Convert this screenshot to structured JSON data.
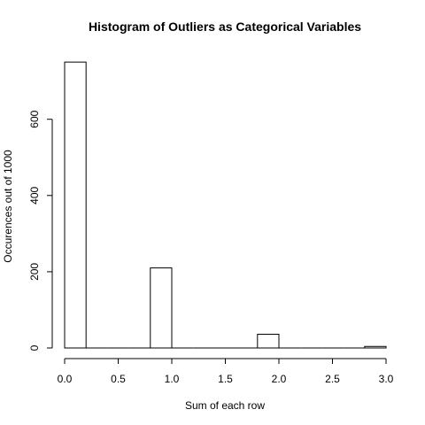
{
  "chart_data": {
    "type": "bar",
    "title": "Histogram of Outliers as Categorical Variables",
    "xlabel": "Sum of each row",
    "ylabel": "Occurences out of 1000",
    "bins": [
      {
        "from": 0.0,
        "to": 0.2,
        "count": 750
      },
      {
        "from": 0.2,
        "to": 0.4,
        "count": 0
      },
      {
        "from": 0.4,
        "to": 0.6,
        "count": 0
      },
      {
        "from": 0.6,
        "to": 0.8,
        "count": 0
      },
      {
        "from": 0.8,
        "to": 1.0,
        "count": 210
      },
      {
        "from": 1.0,
        "to": 1.2,
        "count": 0
      },
      {
        "from": 1.2,
        "to": 1.4,
        "count": 0
      },
      {
        "from": 1.4,
        "to": 1.6,
        "count": 0
      },
      {
        "from": 1.6,
        "to": 1.8,
        "count": 0
      },
      {
        "from": 1.8,
        "to": 2.0,
        "count": 36
      },
      {
        "from": 2.0,
        "to": 2.2,
        "count": 0
      },
      {
        "from": 2.2,
        "to": 2.4,
        "count": 0
      },
      {
        "from": 2.4,
        "to": 2.6,
        "count": 0
      },
      {
        "from": 2.6,
        "to": 2.8,
        "count": 0
      },
      {
        "from": 2.8,
        "to": 3.0,
        "count": 4
      }
    ],
    "xlim": [
      0,
      3
    ],
    "ylim": [
      0,
      750
    ],
    "x_ticks": [
      "0.0",
      "0.5",
      "1.0",
      "1.5",
      "2.0",
      "2.5",
      "3.0"
    ],
    "y_ticks": [
      "0",
      "200",
      "400",
      "600"
    ],
    "grid": false
  }
}
